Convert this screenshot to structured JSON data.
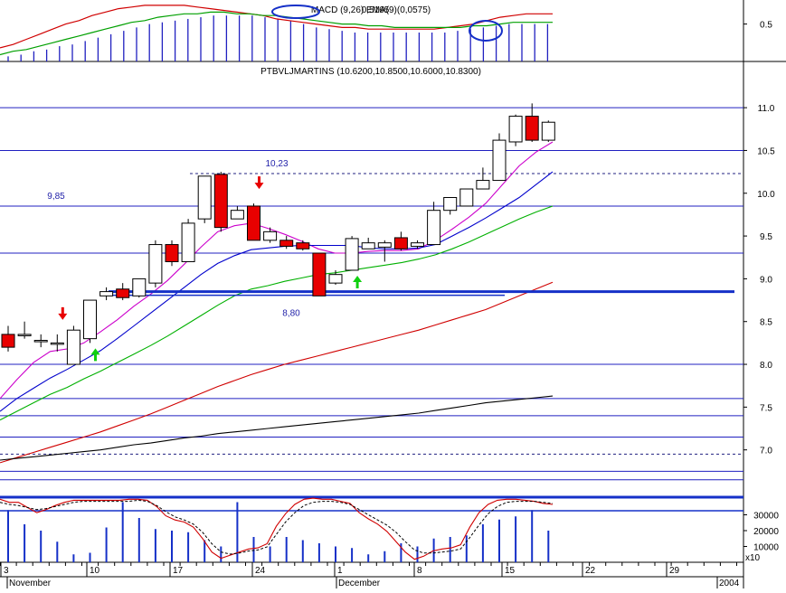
{
  "chart_data": [
    {
      "panel": "indicator-top",
      "type": "line",
      "title": "MACD (9,26) EMA(9)(0,0575)",
      "overlap_text": "0,5165",
      "ylim": [
        0.28,
        0.62
      ],
      "yticks": [
        {
          "value": 0.5,
          "label": "0.5"
        }
      ],
      "histogram": [
        0.31,
        0.32,
        0.34,
        0.35,
        0.37,
        0.38,
        0.4,
        0.42,
        0.44,
        0.46,
        0.48,
        0.5,
        0.51,
        0.52,
        0.53,
        0.54,
        0.55,
        0.55,
        0.55,
        0.55,
        0.54,
        0.53,
        0.52,
        0.5,
        0.48,
        0.47,
        0.46,
        0.45,
        0.45,
        0.45,
        0.45,
        0.45,
        0.45,
        0.45,
        0.45,
        0.46,
        0.47,
        0.48,
        0.49,
        0.5,
        0.5,
        0.5,
        0.5
      ],
      "series": [
        {
          "color": "#d00000",
          "values": [
            0.36,
            0.38,
            0.41,
            0.44,
            0.47,
            0.5,
            0.52,
            0.55,
            0.57,
            0.59,
            0.6,
            0.61,
            0.61,
            0.61,
            0.61,
            0.6,
            0.59,
            0.58,
            0.57,
            0.56,
            0.55,
            0.53,
            0.52,
            0.51,
            0.5,
            0.49,
            0.48,
            0.48,
            0.47,
            0.47,
            0.47,
            0.47,
            0.47,
            0.47,
            0.48,
            0.49,
            0.5,
            0.52,
            0.54,
            0.55,
            0.56,
            0.56,
            0.56
          ]
        },
        {
          "color": "#00a000",
          "values": [
            0.32,
            0.34,
            0.35,
            0.37,
            0.39,
            0.41,
            0.43,
            0.45,
            0.47,
            0.49,
            0.51,
            0.52,
            0.54,
            0.55,
            0.56,
            0.56,
            0.57,
            0.57,
            0.56,
            0.56,
            0.55,
            0.55,
            0.54,
            0.53,
            0.52,
            0.51,
            0.5,
            0.5,
            0.49,
            0.49,
            0.48,
            0.48,
            0.48,
            0.48,
            0.48,
            0.48,
            0.49,
            0.49,
            0.5,
            0.51,
            0.51,
            0.51,
            0.51
          ]
        }
      ]
    },
    {
      "panel": "price",
      "type": "candlestick",
      "title": "PTBVLJMARTINS (10.6200,10.8500,10.6000,10.8300)",
      "ylim": [
        6.5,
        11.35
      ],
      "yticks": [
        {
          "value": 11.0,
          "label": "11.0"
        },
        {
          "value": 10.5,
          "label": "10.5"
        },
        {
          "value": 10.0,
          "label": "10.0"
        },
        {
          "value": 9.5,
          "label": "9.5"
        },
        {
          "value": 9.0,
          "label": "9.0"
        },
        {
          "value": 8.5,
          "label": "8.5"
        },
        {
          "value": 8.0,
          "label": "8.0"
        },
        {
          "value": 7.5,
          "label": "7.5"
        },
        {
          "value": 7.0,
          "label": "7.0"
        }
      ],
      "candles": [
        {
          "o": 8.35,
          "h": 8.45,
          "l": 8.15,
          "c": 8.2
        },
        {
          "o": 8.35,
          "h": 8.5,
          "l": 8.3,
          "c": 8.35
        },
        {
          "o": 8.28,
          "h": 8.35,
          "l": 8.2,
          "c": 8.28
        },
        {
          "o": 8.25,
          "h": 8.35,
          "l": 8.15,
          "c": 8.25
        },
        {
          "o": 8.0,
          "h": 8.45,
          "l": 8.0,
          "c": 8.4
        },
        {
          "o": 8.3,
          "h": 8.75,
          "l": 8.25,
          "c": 8.75
        },
        {
          "o": 8.8,
          "h": 8.9,
          "l": 8.75,
          "c": 8.85
        },
        {
          "o": 8.88,
          "h": 8.95,
          "l": 8.75,
          "c": 8.78
        },
        {
          "o": 8.8,
          "h": 9.0,
          "l": 8.78,
          "c": 9.0
        },
        {
          "o": 8.95,
          "h": 9.45,
          "l": 8.9,
          "c": 9.4
        },
        {
          "o": 9.4,
          "h": 9.45,
          "l": 9.15,
          "c": 9.2
        },
        {
          "o": 9.2,
          "h": 9.7,
          "l": 9.2,
          "c": 9.65
        },
        {
          "o": 9.7,
          "h": 10.2,
          "l": 9.65,
          "c": 10.2
        },
        {
          "o": 10.22,
          "h": 10.25,
          "l": 9.55,
          "c": 9.6
        },
        {
          "o": 9.7,
          "h": 9.85,
          "l": 9.7,
          "c": 9.8
        },
        {
          "o": 9.85,
          "h": 9.88,
          "l": 9.45,
          "c": 9.45
        },
        {
          "o": 9.45,
          "h": 9.6,
          "l": 9.42,
          "c": 9.55
        },
        {
          "o": 9.45,
          "h": 9.5,
          "l": 9.35,
          "c": 9.38
        },
        {
          "o": 9.42,
          "h": 9.45,
          "l": 9.33,
          "c": 9.35
        },
        {
          "o": 9.3,
          "h": 9.3,
          "l": 8.8,
          "c": 8.8
        },
        {
          "o": 8.95,
          "h": 9.1,
          "l": 8.93,
          "c": 9.05
        },
        {
          "o": 9.1,
          "h": 9.5,
          "l": 9.1,
          "c": 9.47
        },
        {
          "o": 9.35,
          "h": 9.48,
          "l": 9.35,
          "c": 9.42
        },
        {
          "o": 9.37,
          "h": 9.45,
          "l": 9.2,
          "c": 9.42
        },
        {
          "o": 9.48,
          "h": 9.55,
          "l": 9.33,
          "c": 9.35
        },
        {
          "o": 9.38,
          "h": 9.45,
          "l": 9.35,
          "c": 9.42
        },
        {
          "o": 9.4,
          "h": 9.9,
          "l": 9.4,
          "c": 9.8
        },
        {
          "o": 9.8,
          "h": 9.95,
          "l": 9.75,
          "c": 9.95
        },
        {
          "o": 9.85,
          "h": 10.05,
          "l": 9.85,
          "c": 10.05
        },
        {
          "o": 10.05,
          "h": 10.3,
          "l": 10.05,
          "c": 10.15
        },
        {
          "o": 10.15,
          "h": 10.7,
          "l": 10.15,
          "c": 10.62
        },
        {
          "o": 10.6,
          "h": 10.92,
          "l": 10.55,
          "c": 10.9
        },
        {
          "o": 10.9,
          "h": 11.05,
          "l": 10.6,
          "c": 10.62
        },
        {
          "o": 10.62,
          "h": 10.85,
          "l": 10.6,
          "c": 10.83
        }
      ],
      "moving_averages": [
        {
          "color": "#cc00cc",
          "values": [
            7.6,
            7.82,
            8.02,
            8.15,
            8.18,
            8.25,
            8.38,
            8.52,
            8.68,
            8.82,
            8.98,
            9.17,
            9.37,
            9.55,
            9.62,
            9.65,
            9.59,
            9.52,
            9.44,
            9.35,
            9.3,
            9.3,
            9.32,
            9.33,
            9.33,
            9.35,
            9.45,
            9.58,
            9.72,
            9.88,
            10.1,
            10.32,
            10.48,
            10.6
          ]
        },
        {
          "color": "#0000cc",
          "values": [
            7.45,
            7.6,
            7.72,
            7.84,
            7.94,
            8.05,
            8.16,
            8.3,
            8.45,
            8.6,
            8.75,
            8.9,
            9.05,
            9.18,
            9.27,
            9.34,
            9.36,
            9.38,
            9.39,
            9.39,
            9.39,
            9.39,
            9.36,
            9.35,
            9.35,
            9.36,
            9.4,
            9.5,
            9.6,
            9.71,
            9.83,
            9.95,
            10.1,
            10.25
          ]
        },
        {
          "color": "#00b000",
          "values": [
            7.35,
            7.45,
            7.55,
            7.65,
            7.73,
            7.83,
            7.92,
            8.02,
            8.12,
            8.22,
            8.33,
            8.45,
            8.57,
            8.69,
            8.8,
            8.88,
            8.92,
            8.97,
            9.01,
            9.05,
            9.07,
            9.1,
            9.13,
            9.16,
            9.19,
            9.23,
            9.28,
            9.35,
            9.43,
            9.52,
            9.61,
            9.7,
            9.78,
            9.85
          ]
        },
        {
          "color": "#d00000",
          "values": [
            6.85,
            6.91,
            6.97,
            7.03,
            7.09,
            7.15,
            7.21,
            7.28,
            7.35,
            7.42,
            7.5,
            7.58,
            7.66,
            7.74,
            7.81,
            7.88,
            7.94,
            8.0,
            8.05,
            8.1,
            8.15,
            8.2,
            8.25,
            8.3,
            8.35,
            8.4,
            8.46,
            8.52,
            8.58,
            8.64,
            8.72,
            8.8,
            8.88,
            8.96
          ]
        },
        {
          "color": "#000000",
          "values": [
            6.88,
            6.9,
            6.92,
            6.94,
            6.96,
            6.98,
            7.0,
            7.03,
            7.06,
            7.08,
            7.11,
            7.14,
            7.16,
            7.19,
            7.21,
            7.23,
            7.25,
            7.27,
            7.29,
            7.31,
            7.33,
            7.35,
            7.37,
            7.39,
            7.41,
            7.43,
            7.46,
            7.49,
            7.52,
            7.55,
            7.57,
            7.59,
            7.61,
            7.63
          ]
        }
      ],
      "annotations": [
        {
          "text": "9,85",
          "value": 9.85
        },
        {
          "text": "10,23",
          "value": 10.23
        },
        {
          "text": "8,80",
          "value": 8.8
        }
      ],
      "horizontal_lines": [
        11.0,
        10.5,
        9.85,
        9.3,
        8.0,
        7.6,
        7.4,
        7.15,
        6.75,
        6.65
      ],
      "support_line": 8.85,
      "dashed_lines": [
        10.23,
        6.95
      ],
      "up_arrows": [
        5,
        21
      ],
      "down_arrows": [
        3,
        15
      ]
    },
    {
      "panel": "stochastic-volume",
      "type": "bar",
      "yticks": [
        {
          "value": 30000,
          "label": "30000"
        },
        {
          "value": 20000,
          "label": "20000"
        },
        {
          "value": 10000,
          "label": "10000"
        }
      ],
      "multiplier_label": "x10",
      "volume": [
        33000,
        24000,
        20000,
        13000,
        5000,
        6000,
        22000,
        38000,
        28000,
        21000,
        20000,
        19000,
        14000,
        10000,
        38000,
        16000,
        10000,
        16000,
        14000,
        12000,
        10000,
        9000,
        5000,
        7000,
        12000,
        10000,
        15000,
        16000,
        17000,
        24000,
        27000,
        29000,
        33000,
        20000
      ],
      "stoch_red": [
        60,
        57,
        57,
        52,
        47,
        50,
        54,
        57,
        59,
        59,
        59,
        59,
        59,
        59,
        60,
        60,
        59,
        53,
        44,
        40,
        38,
        33,
        22,
        9,
        3,
        6,
        9,
        12,
        13,
        17,
        34,
        46,
        55,
        60,
        61,
        60,
        60,
        58,
        56,
        47,
        41,
        36,
        29,
        19,
        9,
        2,
        5,
        10,
        12,
        13,
        16,
        33,
        47,
        55,
        59,
        60,
        60,
        59,
        58,
        56,
        55
      ],
      "stoch_dash": [
        57,
        55,
        54,
        52,
        50,
        51,
        53,
        55,
        57,
        58,
        58,
        58,
        58,
        58,
        58,
        59,
        58,
        54,
        48,
        43,
        40,
        36,
        28,
        17,
        9,
        7,
        8,
        10,
        11,
        14,
        26,
        38,
        47,
        54,
        57,
        58,
        58,
        57,
        55,
        50,
        45,
        40,
        35,
        28,
        19,
        11,
        8,
        8,
        9,
        10,
        12,
        23,
        35,
        46,
        53,
        57,
        58,
        58,
        58,
        57,
        56
      ],
      "x_tick_labels": [
        "3",
        "10",
        "17",
        "24",
        "1",
        "8",
        "15",
        "22",
        "29"
      ],
      "month_labels": [
        "November",
        "December",
        "2004"
      ]
    }
  ]
}
